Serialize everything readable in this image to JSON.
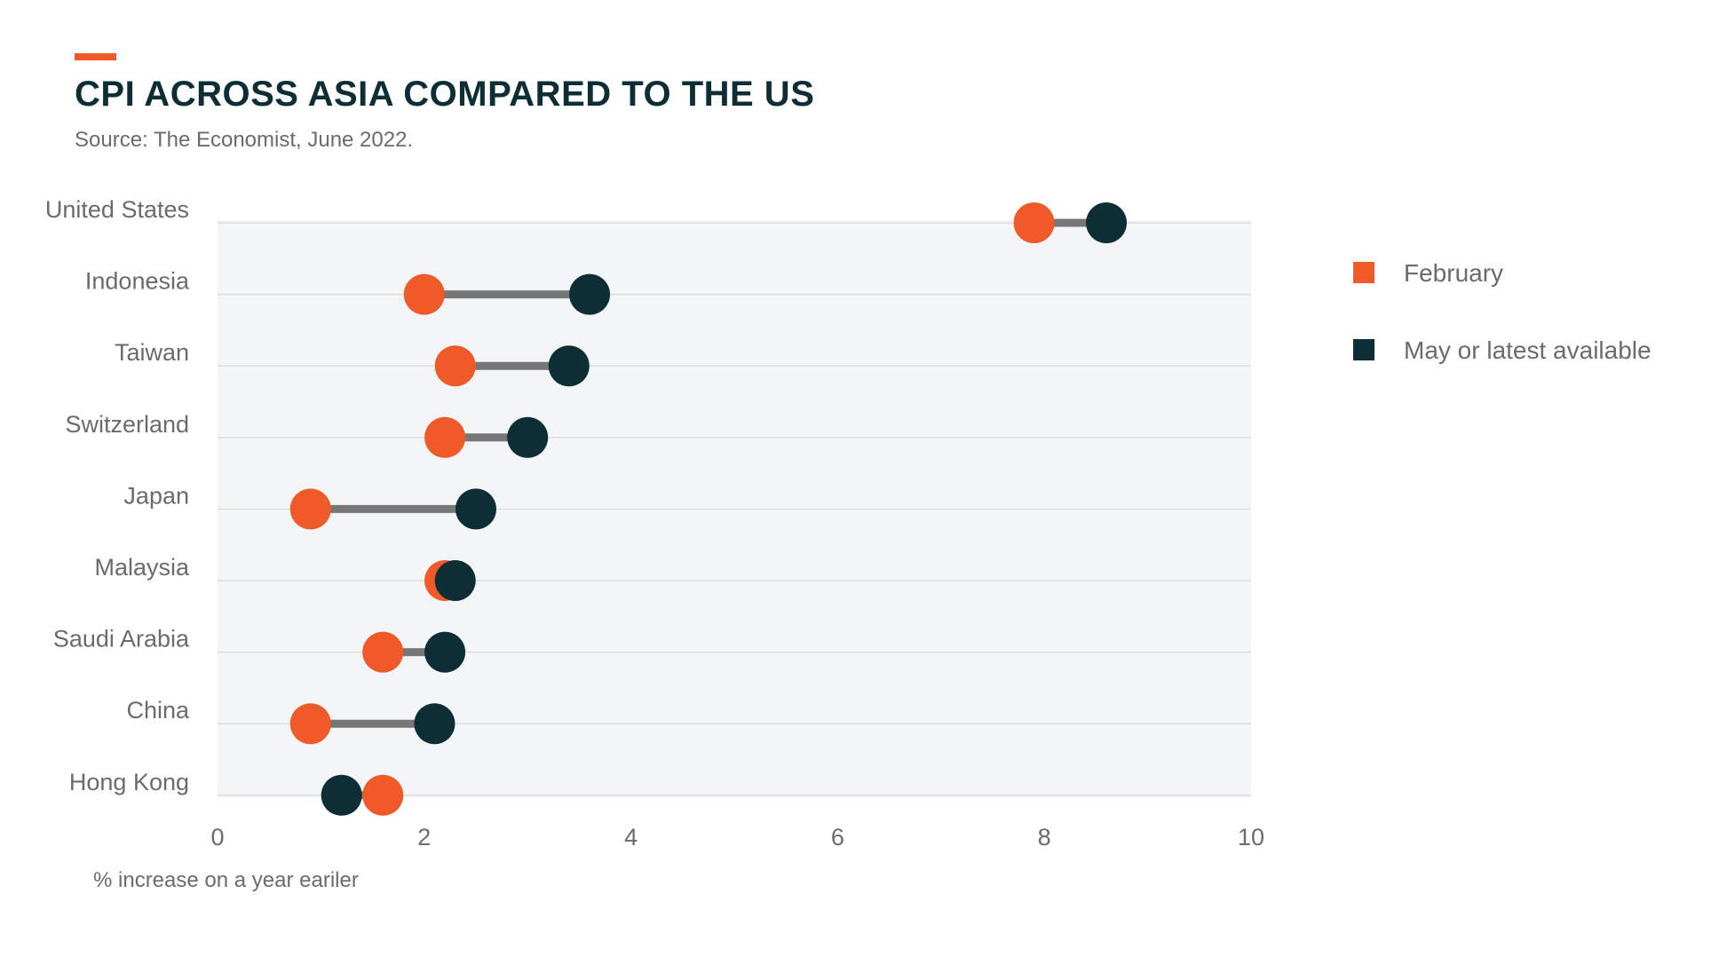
{
  "header": {
    "title": "CPI ACROSS ASIA COMPARED TO THE US",
    "subtitle": "Source: The Economist, June 2022."
  },
  "colors": {
    "accent": "#f05a28",
    "february": "#f05a28",
    "latest": "#0d2e35",
    "connector": "#777777",
    "plot_background": "#f4f5f6",
    "gridline": "#dcdcdc",
    "title": "#0d2e35",
    "text": "#6b6b6b"
  },
  "chart_data": {
    "type": "scatter",
    "subtype": "dumbbell",
    "categories": [
      "United States",
      "Indonesia",
      "Taiwan",
      "Switzerland",
      "Japan",
      "Malaysia",
      "Saudi Arabia",
      "China",
      "Hong Kong"
    ],
    "series": [
      {
        "name": "February",
        "color": "#f05a28",
        "values": [
          7.9,
          2.0,
          2.3,
          2.2,
          0.9,
          2.2,
          1.6,
          0.9,
          1.6
        ]
      },
      {
        "name": "May or latest available",
        "color": "#0d2e35",
        "values": [
          8.6,
          3.6,
          3.4,
          3.0,
          2.5,
          2.3,
          2.2,
          2.1,
          1.2
        ]
      }
    ],
    "xlim": [
      0,
      10
    ],
    "x_ticks": [
      "0",
      "2",
      "4",
      "6",
      "8",
      "10"
    ],
    "xlabel": "% increase on a year eariler",
    "grid": true,
    "legend": {
      "position": "right",
      "items": [
        "February",
        "May or latest available"
      ]
    }
  }
}
